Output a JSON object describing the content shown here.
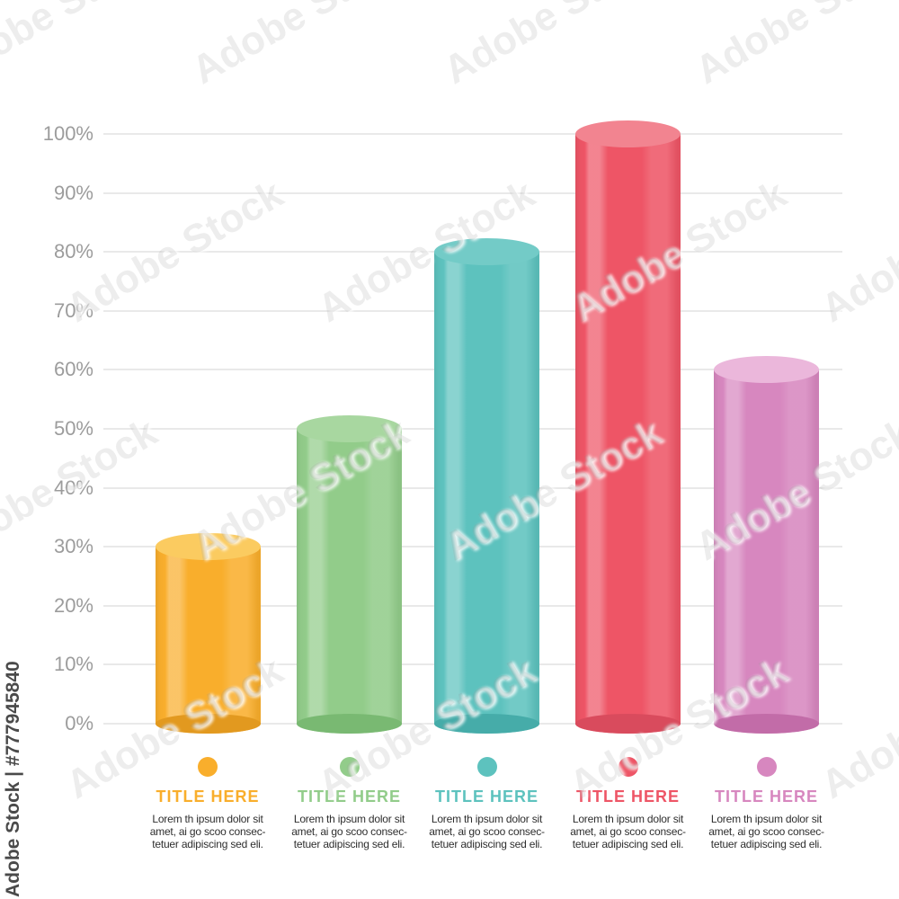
{
  "watermark": {
    "tile_text": "Adobe Stock",
    "side_text": "Adobe Stock | #777945840"
  },
  "chart_data": {
    "type": "bar",
    "style": "3d-cylinder-columns",
    "title": "",
    "categories": [
      "TITLE HERE",
      "TITLE HERE",
      "TITLE HERE",
      "TITLE HERE",
      "TITLE HERE"
    ],
    "values": [
      30,
      50,
      80,
      100,
      60
    ],
    "unit": "%",
    "xlabel": "",
    "ylabel": "",
    "ylim": [
      0,
      100
    ],
    "y_ticks": [
      "100%",
      "90%",
      "80%",
      "70%",
      "60%",
      "50%",
      "40%",
      "30%",
      "20%",
      "10%",
      "0%"
    ],
    "grid": "horizontal",
    "legend_position": "bottom",
    "series_colors": [
      "#F9AE2C",
      "#92CC8A",
      "#5DC2BE",
      "#EE5566",
      "#D787BF"
    ]
  },
  "bars": [
    {
      "label": "TITLE HERE",
      "value": 30,
      "color": "#F9AE2C",
      "color_top": "#FBCB60",
      "color_bottom": "#E2991F"
    },
    {
      "label": "TITLE HERE",
      "value": 50,
      "color": "#92CC8A",
      "color_top": "#A8D7A0",
      "color_bottom": "#79B972"
    },
    {
      "label": "TITLE HERE",
      "value": 80,
      "color": "#5DC2BE",
      "color_top": "#73CBC7",
      "color_bottom": "#46ACA9"
    },
    {
      "label": "TITLE HERE",
      "value": 100,
      "color": "#EE5566",
      "color_top": "#F28490",
      "color_bottom": "#D94B5D"
    },
    {
      "label": "TITLE HERE",
      "value": 60,
      "color": "#D787BF",
      "color_top": "#EBB7DB",
      "color_bottom": "#C26CA8"
    }
  ],
  "legend": {
    "title": "TITLE HERE",
    "description_lines": [
      "Lorem th ipsum dolor sit",
      "amet, ai go scoo consec-",
      "tetuer adipiscing sed eli."
    ]
  },
  "style_colors": {
    "gridline": "#E9E9E9",
    "tick_label": "#9C9C9C",
    "description_text": "#2E2E2E",
    "background": "#FFFFFF"
  }
}
